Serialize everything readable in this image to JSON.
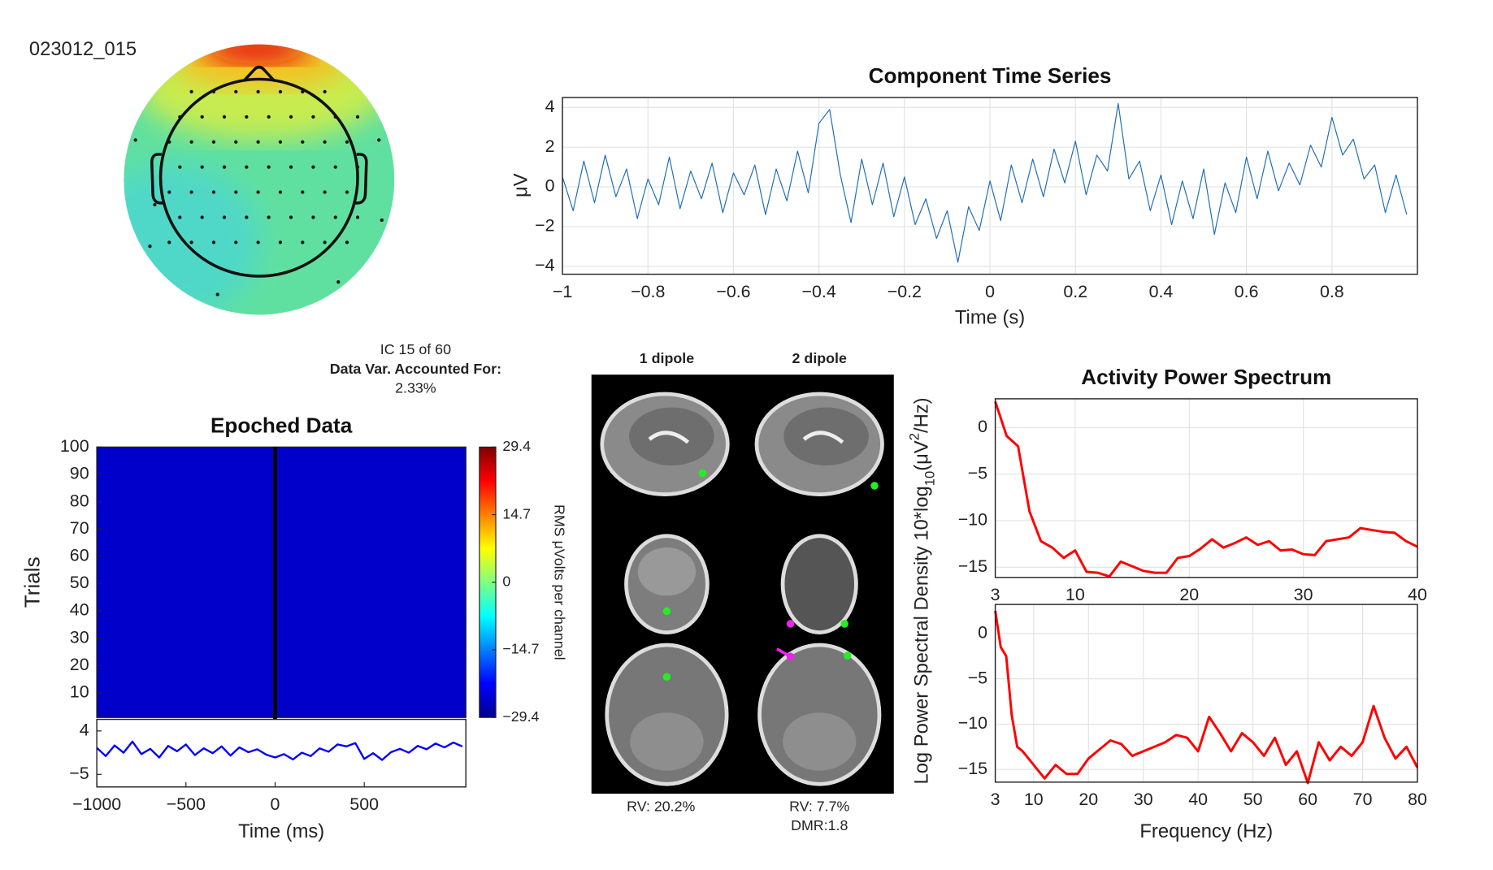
{
  "header": {
    "dataset": "023012_015",
    "ic": "IC 15 of 60",
    "var_label": "Data Var. Accounted For:",
    "var_value": "2.33%"
  },
  "dipoles": {
    "col1": "1 dipole",
    "col2": "2 dipole",
    "rv1": "RV: 20.2%",
    "rv2": "RV: 7.7%",
    "dmr2": "DMR:1.8"
  },
  "chart_data": [
    {
      "type": "line",
      "title": "Component Time Series",
      "ylabel": "μV",
      "xlabel": "Time (s)",
      "color": "#1f6fb4",
      "grid": true,
      "xlim": [
        -1,
        1
      ],
      "ylim": [
        -4.4,
        4.5
      ],
      "xticks": [
        {
          "value": -1,
          "label": "−1"
        },
        {
          "value": -0.8,
          "label": "−0.8"
        },
        {
          "value": -0.6,
          "label": "−0.6"
        },
        {
          "value": -0.4,
          "label": "−0.4"
        },
        {
          "value": -0.2,
          "label": "−0.2"
        },
        0,
        0.2,
        0.4,
        0.6,
        0.8
      ],
      "yticks": [
        {
          "value": -4,
          "label": "−4"
        },
        {
          "value": -2,
          "label": "−2"
        },
        0,
        2,
        4
      ],
      "x": [
        -1,
        -0.975,
        -0.95,
        -0.925,
        -0.9,
        -0.875,
        -0.85,
        -0.825,
        -0.8,
        -0.775,
        -0.75,
        -0.725,
        -0.7,
        -0.675,
        -0.65,
        -0.625,
        -0.6,
        -0.575,
        -0.55,
        -0.525,
        -0.5,
        -0.475,
        -0.45,
        -0.425,
        -0.4,
        -0.375,
        -0.35,
        -0.325,
        -0.3,
        -0.275,
        -0.25,
        -0.225,
        -0.2,
        -0.175,
        -0.15,
        -0.125,
        -0.1,
        -0.075,
        -0.05,
        -0.025,
        0,
        0.025,
        0.05,
        0.075,
        0.1,
        0.125,
        0.15,
        0.175,
        0.2,
        0.225,
        0.25,
        0.275,
        0.3,
        0.325,
        0.35,
        0.375,
        0.4,
        0.425,
        0.45,
        0.475,
        0.5,
        0.525,
        0.55,
        0.575,
        0.6,
        0.625,
        0.65,
        0.675,
        0.7,
        0.725,
        0.75,
        0.775,
        0.8,
        0.825,
        0.85,
        0.875,
        0.9,
        0.925,
        0.95,
        0.975
      ],
      "values": [
        0.5,
        -1.2,
        1.3,
        -0.8,
        1.6,
        -0.5,
        0.9,
        -1.6,
        0.4,
        -0.9,
        1.5,
        -1.1,
        0.8,
        -0.6,
        1.2,
        -1.3,
        0.7,
        -0.4,
        1.1,
        -1.4,
        0.9,
        -0.7,
        1.8,
        -0.3,
        3.2,
        3.9,
        0.6,
        -1.8,
        1.4,
        -0.9,
        1.2,
        -1.5,
        0.5,
        -1.9,
        -0.6,
        -2.6,
        -1.2,
        -3.8,
        -1.0,
        -2.2,
        0.3,
        -1.7,
        1.1,
        -0.8,
        1.4,
        -0.5,
        1.9,
        0.2,
        2.3,
        -0.4,
        1.6,
        0.8,
        4.2,
        0.4,
        1.3,
        -1.2,
        0.6,
        -1.9,
        0.3,
        -1.6,
        0.9,
        -2.4,
        0.2,
        -1.3,
        1.5,
        -0.6,
        1.8,
        -0.2,
        1.2,
        0.1,
        2.1,
        1.0,
        3.5,
        1.6,
        2.4,
        0.4,
        1.1,
        -1.3,
        0.6,
        -1.4
      ]
    },
    {
      "type": "heatmap",
      "title": "Epoched Data",
      "ylabel": "Trials",
      "grid": false,
      "xlim": [
        -1000,
        1070
      ],
      "ylim": [
        1,
        100
      ],
      "yticks": [
        10,
        20,
        30,
        40,
        50,
        60,
        70,
        80,
        90,
        100
      ],
      "clim": [
        -29.4,
        29.4
      ],
      "colorbar_label": "RMS μVolts per channel",
      "cticks": [
        {
          "value": -29.4,
          "label": "−29.4"
        },
        {
          "value": -14.7,
          "label": "−14.7"
        },
        0,
        14.7,
        29.4
      ]
    },
    {
      "type": "line",
      "xlabel": "Time (ms)",
      "color": "#0000ff",
      "grid": false,
      "xlim": [
        -1000,
        1070
      ],
      "ylim": [
        -7.6,
        6.4
      ],
      "xticks": [
        {
          "value": -1000,
          "label": "−1000"
        },
        {
          "value": -500,
          "label": "−500"
        },
        0,
        500
      ],
      "yticks": [
        {
          "value": -5,
          "label": "−5"
        },
        4
      ],
      "x": [
        -1000,
        -950,
        -900,
        -850,
        -800,
        -750,
        -700,
        -650,
        -600,
        -550,
        -500,
        -450,
        -400,
        -350,
        -300,
        -250,
        -200,
        -150,
        -100,
        -50,
        0,
        50,
        100,
        150,
        200,
        250,
        300,
        350,
        400,
        450,
        500,
        550,
        600,
        650,
        700,
        750,
        800,
        850,
        900,
        950,
        1000,
        1050
      ],
      "values": [
        0.5,
        -1.2,
        1.0,
        -0.5,
        1.8,
        -0.8,
        0.3,
        -1.5,
        0.9,
        -0.2,
        1.2,
        -1.0,
        0.4,
        -0.6,
        0.8,
        -1.1,
        0.6,
        -0.4,
        0.2,
        -0.9,
        -1.5,
        -0.8,
        -1.9,
        -0.5,
        -1.2,
        0.4,
        -0.3,
        1.2,
        0.8,
        1.5,
        -1.8,
        -0.6,
        -2.0,
        -0.4,
        0.3,
        -0.5,
        0.9,
        0.2,
        1.4,
        0.6,
        1.6,
        0.8
      ]
    },
    {
      "type": "line",
      "title": "Activity Power Spectrum",
      "ylabel": [
        "Log Power Spectral Density 10*log",
        "10",
        "(μV",
        "2",
        "/Hz)"
      ],
      "color": "#ff0000",
      "grid": true,
      "xlim": [
        3,
        40
      ],
      "ylim": [
        -16.1,
        3.1
      ],
      "xticks": [
        3,
        10,
        20,
        30,
        40
      ],
      "yticks": [
        {
          "value": -15,
          "label": "−15"
        },
        {
          "value": -10,
          "label": "−10"
        },
        {
          "value": -5,
          "label": "−5"
        },
        0
      ],
      "x": [
        3,
        4,
        5,
        6,
        7,
        8,
        9,
        10,
        11,
        12,
        13,
        14,
        15,
        16,
        17,
        18,
        19,
        20,
        21,
        22,
        23,
        24,
        25,
        26,
        27,
        28,
        29,
        30,
        31,
        32,
        33,
        34,
        35,
        36,
        37,
        38,
        39,
        40
      ],
      "values": [
        2.8,
        -0.9,
        -2,
        -9,
        -12.2,
        -12.9,
        -14,
        -13.2,
        -15.5,
        -15.6,
        -16,
        -14.4,
        -14.9,
        -15.4,
        -15.6,
        -15.6,
        -14,
        -13.8,
        -13,
        -12,
        -12.9,
        -12.4,
        -11.8,
        -12.6,
        -12.2,
        -13.2,
        -13.1,
        -13.6,
        -13.7,
        -12.2,
        -12,
        -11.8,
        -10.8,
        -11,
        -11.2,
        -11.3,
        -12.2,
        -12.8
      ]
    },
    {
      "type": "line",
      "xlabel": "Frequency (Hz)",
      "color": "#ff0000",
      "grid": true,
      "xlim": [
        3,
        80
      ],
      "ylim": [
        -16.4,
        3.2
      ],
      "xticks": [
        3,
        10,
        20,
        30,
        40,
        50,
        60,
        70,
        80
      ],
      "yticks": [
        {
          "value": -15,
          "label": "−15"
        },
        {
          "value": -10,
          "label": "−10"
        },
        {
          "value": -5,
          "label": "−5"
        },
        0
      ],
      "x": [
        3,
        4,
        5,
        6,
        7,
        8,
        10,
        12,
        14,
        16,
        18,
        20,
        22,
        24,
        26,
        28,
        30,
        32,
        34,
        36,
        38,
        40,
        42,
        44,
        46,
        48,
        50,
        52,
        54,
        56,
        58,
        60,
        62,
        64,
        66,
        68,
        70,
        72,
        74,
        76,
        78,
        80
      ],
      "values": [
        2.5,
        -1.5,
        -2.5,
        -9,
        -12.5,
        -13,
        -14.5,
        -16,
        -14.5,
        -15.5,
        -15.5,
        -13.8,
        -12.8,
        -11.8,
        -12.2,
        -13.5,
        -13,
        -12.5,
        -12,
        -11.2,
        -11.5,
        -13,
        -9.2,
        -11,
        -13,
        -11,
        -12,
        -13.5,
        -11.5,
        -14.5,
        -13,
        -16.5,
        -12,
        -14,
        -12.5,
        -13.5,
        -12,
        -8,
        -11.5,
        -13.8,
        -12.5,
        -14.8
      ]
    }
  ]
}
